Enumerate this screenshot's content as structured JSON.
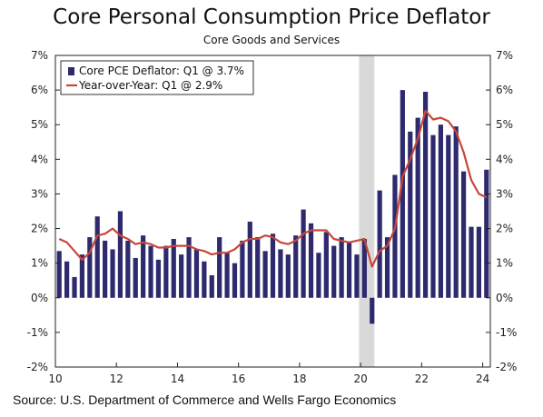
{
  "chart_data": {
    "type": "bar",
    "title": "Core Personal Consumption Price Deflator",
    "subtitle": "Core Goods and Services",
    "source": "Source: U.S. Department of Commerce and Wells Fargo Economics",
    "ylim": [
      -2,
      7
    ],
    "y_ticks": [
      "7%",
      "6%",
      "5%",
      "4%",
      "3%",
      "2%",
      "1%",
      "0%",
      "-1%",
      "-2%"
    ],
    "x_ticks": [
      "10",
      "12",
      "14",
      "16",
      "18",
      "20",
      "22",
      "24"
    ],
    "x_range": [
      2010.0,
      2024.25
    ],
    "shaded_region": [
      2019.95,
      2020.45
    ],
    "colors": {
      "bar": "#2e2a6e",
      "line": "#c8463a",
      "shade": "#d9d9d9"
    },
    "series": [
      {
        "name": "Core PCE Deflator: Q1 @ 3.7%",
        "type": "bar",
        "x": [
          2010.0,
          2010.25,
          2010.5,
          2010.75,
          2011.0,
          2011.25,
          2011.5,
          2011.75,
          2012.0,
          2012.25,
          2012.5,
          2012.75,
          2013.0,
          2013.25,
          2013.5,
          2013.75,
          2014.0,
          2014.25,
          2014.5,
          2014.75,
          2015.0,
          2015.25,
          2015.5,
          2015.75,
          2016.0,
          2016.25,
          2016.5,
          2016.75,
          2017.0,
          2017.25,
          2017.5,
          2017.75,
          2018.0,
          2018.25,
          2018.5,
          2018.75,
          2019.0,
          2019.25,
          2019.5,
          2019.75,
          2020.0,
          2020.25,
          2020.5,
          2020.75,
          2021.0,
          2021.25,
          2021.5,
          2021.75,
          2022.0,
          2022.25,
          2022.5,
          2022.75,
          2023.0,
          2023.25,
          2023.5,
          2023.75,
          2024.0
        ],
        "values": [
          1.35,
          1.05,
          0.6,
          1.25,
          1.75,
          2.35,
          1.65,
          1.4,
          2.5,
          1.65,
          1.15,
          1.8,
          1.5,
          1.1,
          1.5,
          1.7,
          1.25,
          1.75,
          1.4,
          1.05,
          0.65,
          1.75,
          1.3,
          1.0,
          1.65,
          2.2,
          1.75,
          1.35,
          1.85,
          1.4,
          1.25,
          1.8,
          2.55,
          2.15,
          1.3,
          1.9,
          1.5,
          1.75,
          1.6,
          1.25,
          1.7,
          -0.75,
          3.1,
          1.75,
          3.55,
          6.0,
          4.8,
          5.2,
          5.95,
          4.7,
          5.0,
          4.7,
          4.95,
          3.65,
          2.05,
          2.05,
          3.7
        ]
      },
      {
        "name": "Year-over-Year: Q1 @ 2.9%",
        "type": "line",
        "x": [
          2010.0,
          2010.25,
          2010.5,
          2010.75,
          2011.0,
          2011.25,
          2011.5,
          2011.75,
          2012.0,
          2012.25,
          2012.5,
          2012.75,
          2013.0,
          2013.25,
          2013.5,
          2013.75,
          2014.0,
          2014.25,
          2014.5,
          2014.75,
          2015.0,
          2015.25,
          2015.5,
          2015.75,
          2016.0,
          2016.25,
          2016.5,
          2016.75,
          2017.0,
          2017.25,
          2017.5,
          2017.75,
          2018.0,
          2018.25,
          2018.5,
          2018.75,
          2019.0,
          2019.25,
          2019.5,
          2019.75,
          2020.0,
          2020.25,
          2020.5,
          2020.75,
          2021.0,
          2021.25,
          2021.5,
          2021.75,
          2022.0,
          2022.25,
          2022.5,
          2022.75,
          2023.0,
          2023.25,
          2023.5,
          2023.75,
          2024.0
        ],
        "values": [
          1.7,
          1.6,
          1.35,
          1.1,
          1.3,
          1.8,
          1.85,
          2.0,
          1.8,
          1.7,
          1.55,
          1.6,
          1.55,
          1.45,
          1.45,
          1.5,
          1.5,
          1.5,
          1.4,
          1.35,
          1.25,
          1.3,
          1.3,
          1.4,
          1.6,
          1.7,
          1.7,
          1.8,
          1.75,
          1.6,
          1.55,
          1.65,
          1.85,
          1.95,
          1.95,
          1.95,
          1.7,
          1.65,
          1.6,
          1.65,
          1.7,
          0.9,
          1.35,
          1.5,
          2.0,
          3.5,
          4.0,
          4.6,
          5.4,
          5.15,
          5.2,
          5.1,
          4.8,
          4.2,
          3.4,
          3.0,
          2.9
        ]
      }
    ],
    "legend_placement": "top-left",
    "grid": false
  }
}
